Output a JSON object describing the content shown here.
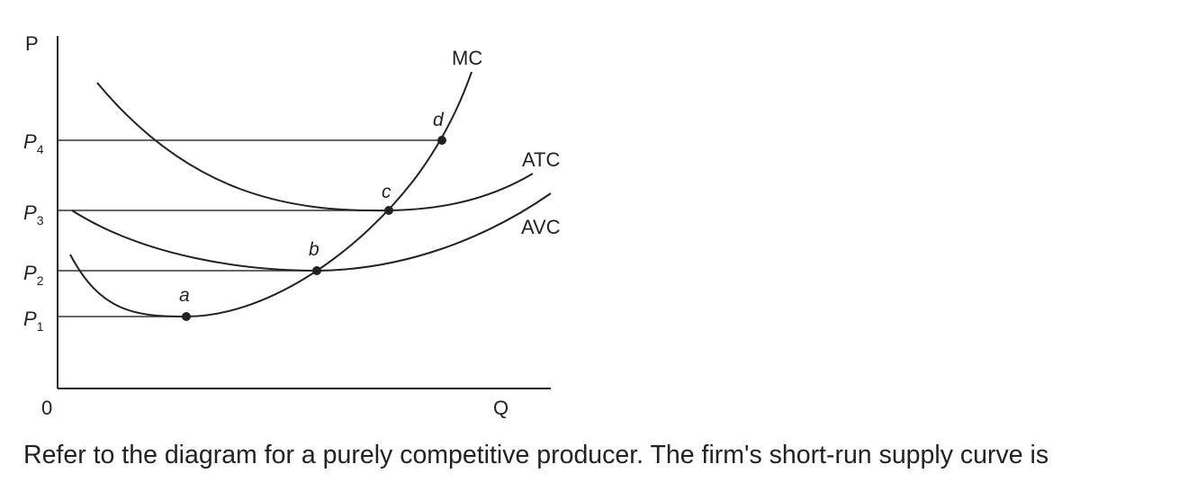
{
  "diagram": {
    "y_axis_label": "P",
    "x_axis_label": "Q",
    "origin_label": "0",
    "price_levels": [
      {
        "base": "P",
        "sub": "1"
      },
      {
        "base": "P",
        "sub": "2"
      },
      {
        "base": "P",
        "sub": "3"
      },
      {
        "base": "P",
        "sub": "4"
      }
    ],
    "curves": {
      "mc": "MC",
      "atc": "ATC",
      "avc": "AVC"
    },
    "points": {
      "a": "a",
      "b": "b",
      "c": "c",
      "d": "d"
    },
    "colors": {
      "ink": "#222222",
      "background": "#ffffff"
    }
  },
  "question": {
    "text": "Refer to the diagram for a purely competitive producer. The firm's short-run supply curve is"
  }
}
